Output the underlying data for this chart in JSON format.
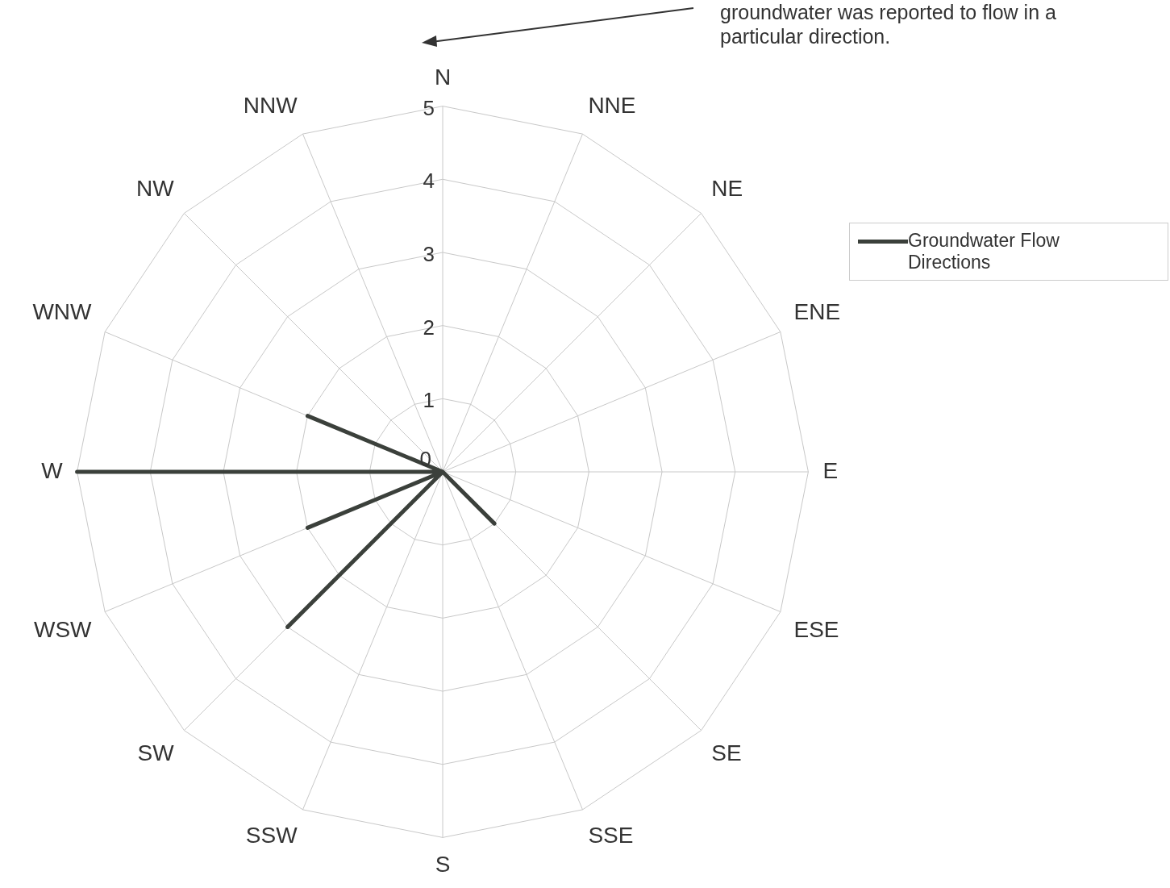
{
  "chart_data": {
    "type": "radar",
    "categories": [
      "N",
      "NNE",
      "NE",
      "ENE",
      "E",
      "ESE",
      "SE",
      "SSE",
      "S",
      "SSW",
      "SW",
      "WSW",
      "W",
      "WNW",
      "NW",
      "NNW"
    ],
    "series": [
      {
        "name": "Groundwater Flow Directions",
        "color": "#3b403b",
        "values": [
          0,
          0,
          0,
          0,
          0,
          0,
          1,
          0,
          0,
          0,
          3,
          2,
          5,
          2,
          0,
          0
        ]
      }
    ],
    "ylim": [
      0,
      5
    ],
    "yticks": [
      0,
      1,
      2,
      3,
      4,
      5
    ],
    "grid": true,
    "legend": "right",
    "marker": "none",
    "line_style": "solid",
    "annotations": [
      "groundwater was reported to flow in a particular direction."
    ]
  }
}
